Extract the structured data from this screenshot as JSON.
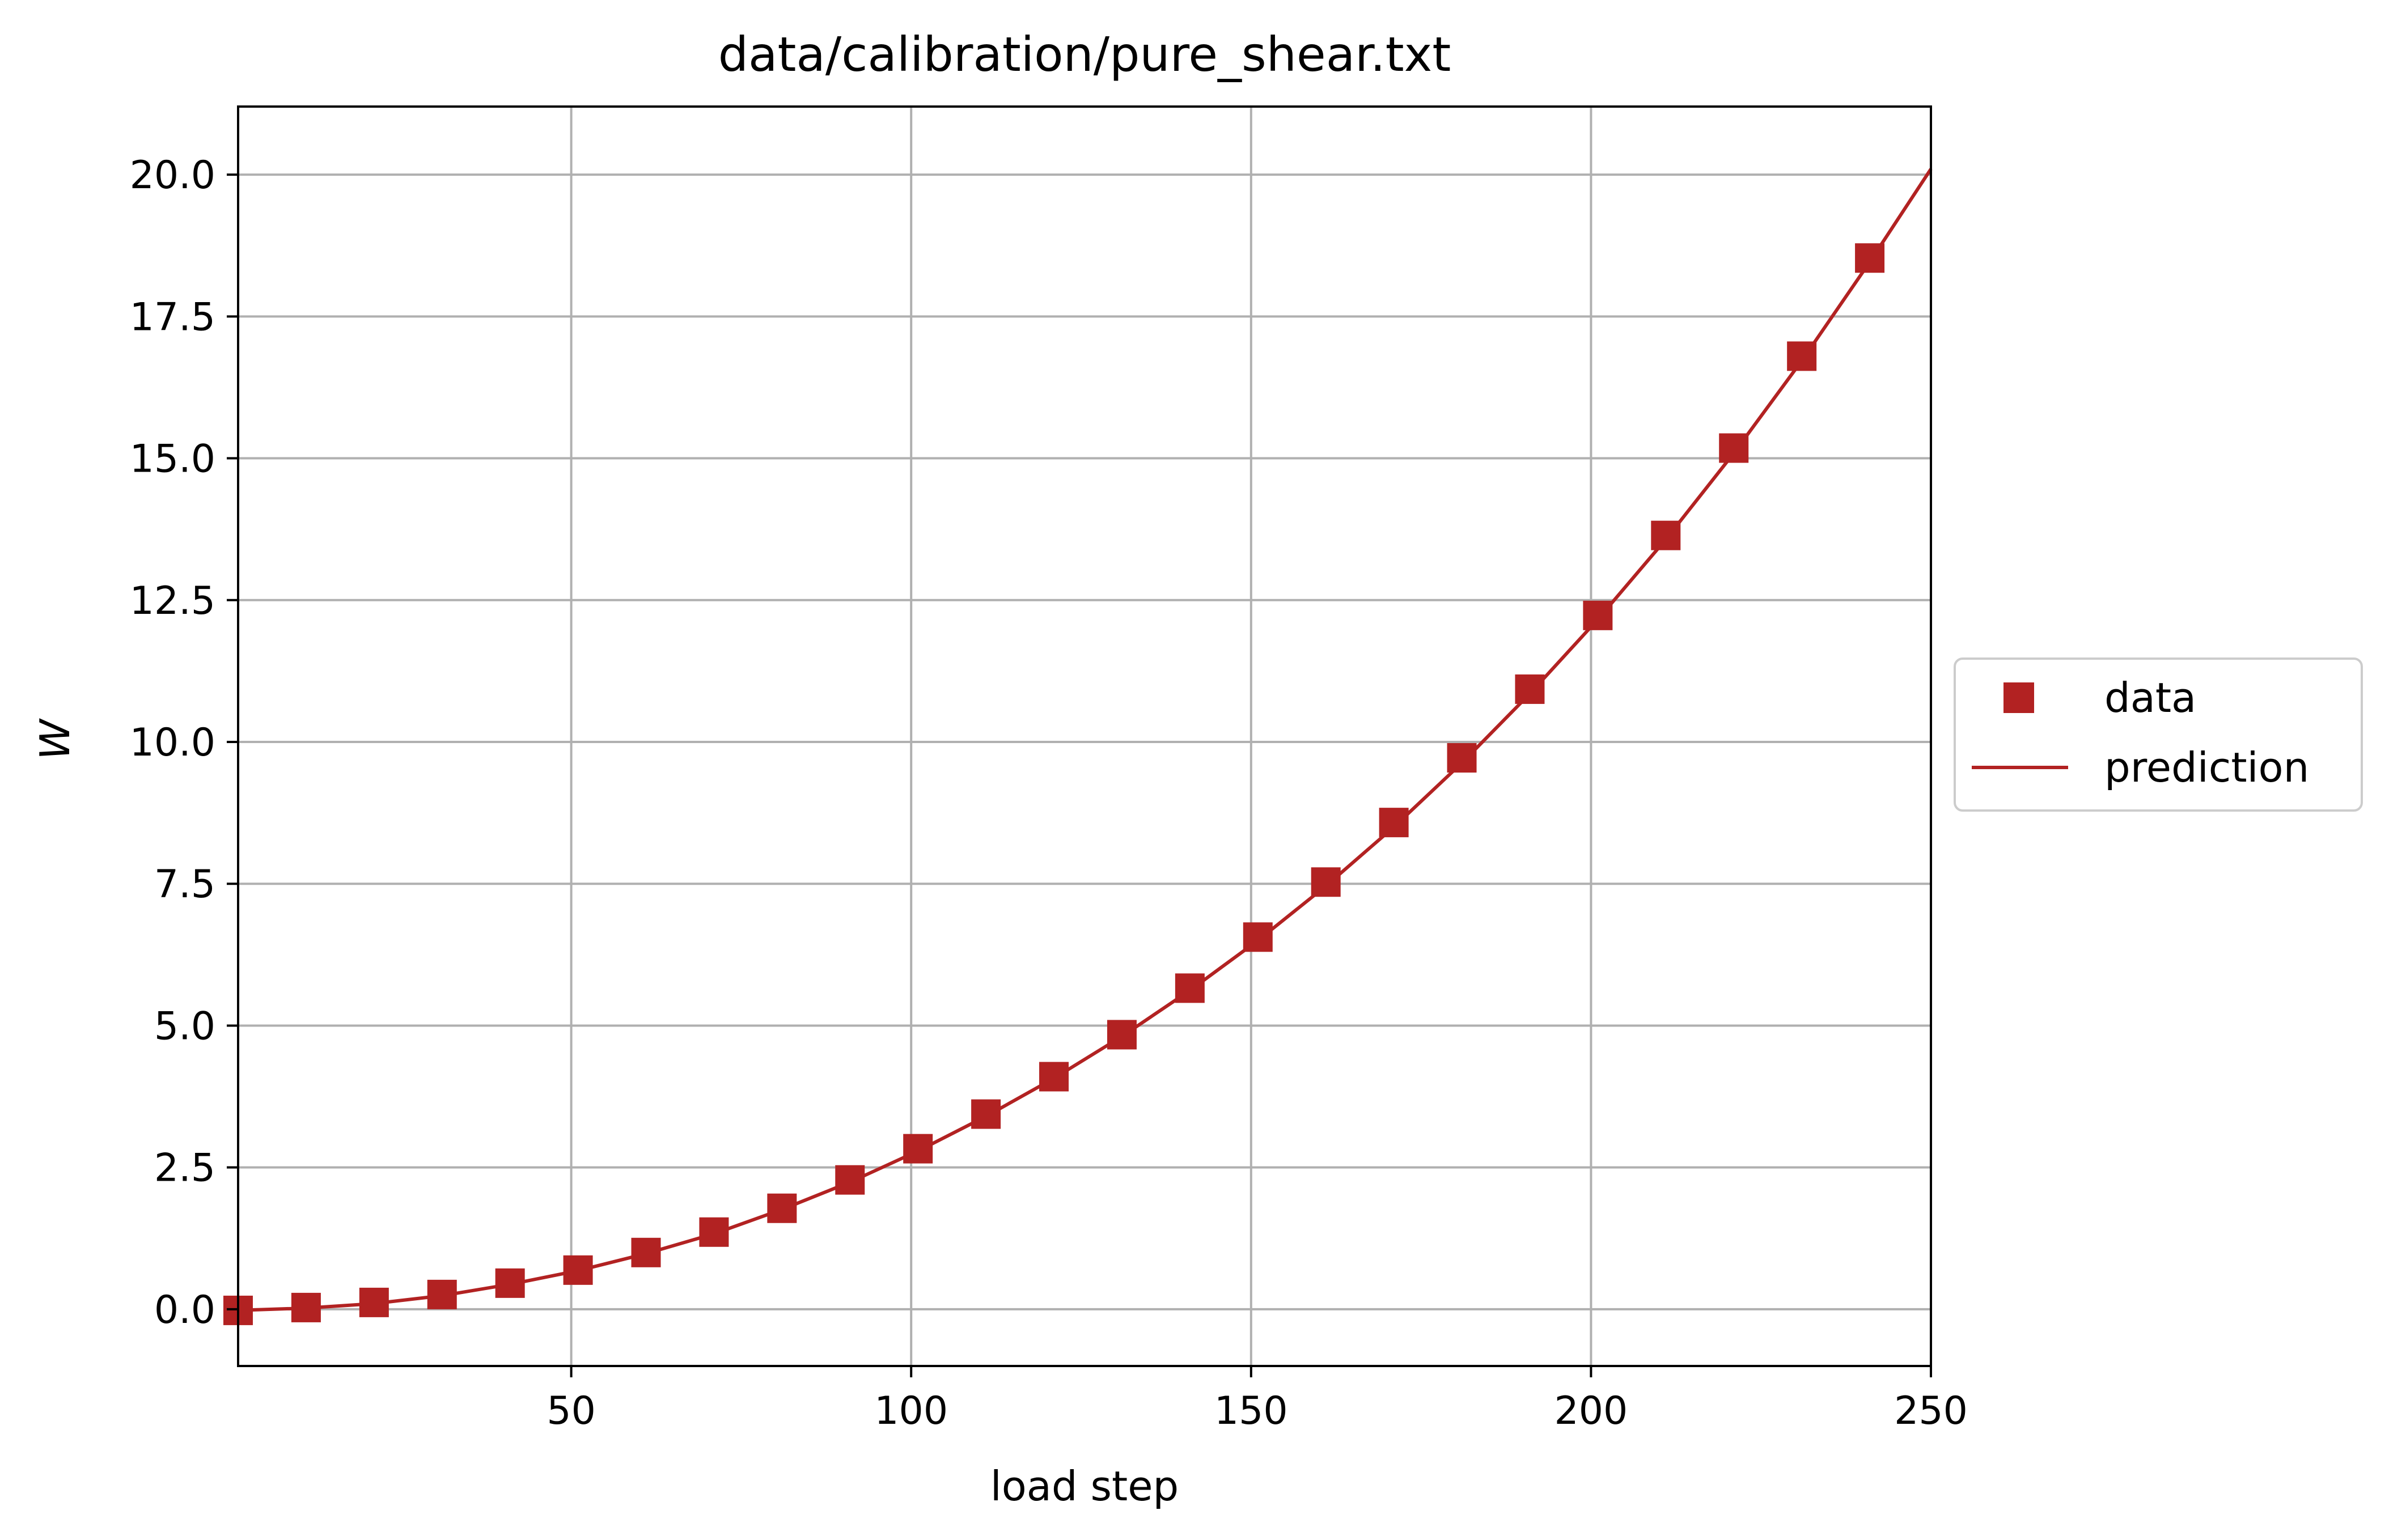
{
  "chart_data": {
    "type": "line",
    "title": "data/calibration/pure_shear.txt",
    "xlabel": "load step",
    "ylabel": "W",
    "xlim": [
      1,
      250
    ],
    "ylim": [
      -1.0,
      21.2
    ],
    "xticks": [
      50,
      100,
      150,
      200,
      250
    ],
    "xtick_labels": [
      "50",
      "100",
      "150",
      "200",
      "250"
    ],
    "yticks": [
      0.0,
      2.5,
      5.0,
      7.5,
      10.0,
      12.5,
      15.0,
      17.5,
      20.0
    ],
    "ytick_labels": [
      "0.0",
      "2.5",
      "5.0",
      "7.5",
      "10.0",
      "12.5",
      "15.0",
      "17.5",
      "20.0"
    ],
    "grid": true,
    "legend": {
      "placement": "outside-right",
      "entries": [
        "data",
        "prediction"
      ]
    },
    "series": [
      {
        "name": "data",
        "kind": "marker",
        "marker": "square",
        "color": "#b22222",
        "x": [
          1,
          11,
          21,
          31,
          41,
          51,
          61,
          71,
          81,
          91,
          101,
          111,
          121,
          131,
          141,
          151,
          161,
          171,
          181,
          191,
          201,
          211,
          221,
          231,
          241
        ],
        "y": [
          -0.02,
          0.03,
          0.12,
          0.26,
          0.46,
          0.69,
          1.0,
          1.36,
          1.78,
          2.28,
          2.83,
          3.44,
          4.1,
          4.84,
          5.66,
          6.56,
          7.53,
          8.58,
          9.72,
          10.93,
          12.23,
          13.64,
          15.18,
          16.8,
          18.53
        ]
      },
      {
        "name": "prediction",
        "kind": "line",
        "color": "#b22222",
        "x": [
          1,
          11,
          21,
          31,
          41,
          51,
          61,
          71,
          81,
          91,
          101,
          111,
          121,
          131,
          141,
          151,
          161,
          171,
          181,
          191,
          201,
          211,
          221,
          231,
          241,
          250
        ],
        "y": [
          -0.02,
          0.02,
          0.1,
          0.24,
          0.44,
          0.68,
          0.98,
          1.33,
          1.76,
          2.24,
          2.79,
          3.4,
          4.07,
          4.81,
          5.62,
          6.5,
          7.46,
          8.5,
          9.63,
          10.85,
          12.16,
          13.57,
          15.09,
          16.72,
          18.46,
          20.1
        ]
      }
    ]
  }
}
